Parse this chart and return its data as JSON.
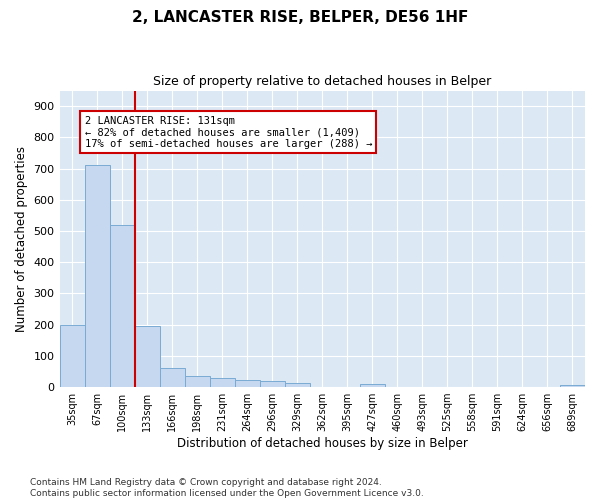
{
  "title": "2, LANCASTER RISE, BELPER, DE56 1HF",
  "subtitle": "Size of property relative to detached houses in Belper",
  "xlabel": "Distribution of detached houses by size in Belper",
  "ylabel": "Number of detached properties",
  "categories": [
    "35sqm",
    "67sqm",
    "100sqm",
    "133sqm",
    "166sqm",
    "198sqm",
    "231sqm",
    "264sqm",
    "296sqm",
    "329sqm",
    "362sqm",
    "395sqm",
    "427sqm",
    "460sqm",
    "493sqm",
    "525sqm",
    "558sqm",
    "591sqm",
    "624sqm",
    "656sqm",
    "689sqm"
  ],
  "values": [
    200,
    710,
    520,
    195,
    60,
    35,
    28,
    22,
    18,
    12,
    0,
    0,
    10,
    0,
    0,
    0,
    0,
    0,
    0,
    0,
    8
  ],
  "bar_color": "#c5d8f0",
  "bar_edge_color": "#7aaad4",
  "vline_x_index": 2.5,
  "vline_color": "#cc0000",
  "ylim": [
    0,
    950
  ],
  "yticks": [
    0,
    100,
    200,
    300,
    400,
    500,
    600,
    700,
    800,
    900
  ],
  "annotation_text": "2 LANCASTER RISE: 131sqm\n← 82% of detached houses are smaller (1,409)\n17% of semi-detached houses are larger (288) →",
  "annotation_box_color": "#ffffff",
  "annotation_box_edge_color": "#cc0000",
  "footnote": "Contains HM Land Registry data © Crown copyright and database right 2024.\nContains public sector information licensed under the Open Government Licence v3.0.",
  "title_fontsize": 11,
  "subtitle_fontsize": 9,
  "xlabel_fontsize": 8.5,
  "ylabel_fontsize": 8.5,
  "annotation_fontsize": 7.5,
  "footnote_fontsize": 6.5,
  "plot_bg_color": "#dce9f5",
  "grid_color": "#c0d0e8"
}
